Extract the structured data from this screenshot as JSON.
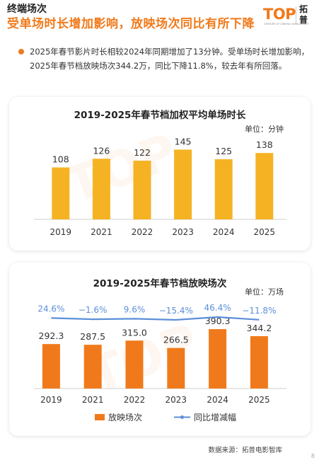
{
  "header": {
    "section": "终端场次",
    "headline": "受单场时长增加影响，放映场次同比有所下降"
  },
  "logo": {
    "wordmark": "TOP",
    "tagline": "CENTURY OF CINEMA CONSULTANCY",
    "cn_top": "拓",
    "cn_bottom": "普"
  },
  "summary": "2025年春节影片时长相较2024年同期增加了13分钟。受单场时长增加影响，2025年春节档放映场次344.2万，同比下降11.8%，较去年有所回落。",
  "colors": {
    "accent": "#f07a1b",
    "bar": "#f5b324",
    "bar2": "#f07a1b",
    "line": "#5b8fd9"
  },
  "chart_data": [
    {
      "type": "bar",
      "title": "2019-2025年春节档加权平均单场时长",
      "unit": "单位：分钟",
      "categories": [
        "2019",
        "2021",
        "2022",
        "2023",
        "2024",
        "2025"
      ],
      "values": [
        108,
        126,
        122,
        145,
        125,
        138
      ],
      "value_labels": [
        "108",
        "126",
        "122",
        "145",
        "125",
        "138"
      ]
    },
    {
      "type": "bar",
      "title": "2019-2025年春节档放映场次",
      "unit": "单位：万场",
      "categories": [
        "2019",
        "2021",
        "2022",
        "2023",
        "2024",
        "2025"
      ],
      "series": [
        {
          "name": "放映场次",
          "type": "bar",
          "values": [
            292.3,
            287.5,
            315.0,
            266.5,
            390.3,
            344.2
          ],
          "value_labels": [
            "292.3",
            "287.5",
            "315.0",
            "266.5",
            "390.3",
            "344.2"
          ]
        },
        {
          "name": "同比增减幅",
          "type": "line",
          "values": [
            24.6,
            -1.6,
            9.6,
            -15.4,
            46.4,
            -11.8
          ],
          "value_labels": [
            "24.6%",
            "−1.6%",
            "9.6%",
            "−15.4%",
            "46.4%",
            "−11.8%"
          ]
        }
      ],
      "legend": "bottom"
    }
  ],
  "footer": {
    "source": "数据来源：拓普电影智库",
    "page": "8"
  }
}
